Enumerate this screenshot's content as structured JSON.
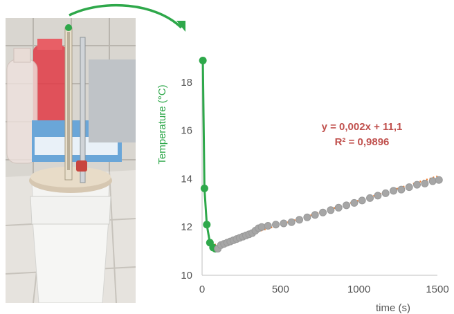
{
  "chart_data": {
    "type": "scatter",
    "title": "",
    "xlabel": "time (s)",
    "ylabel": "Temperature (°C)",
    "xlim": [
      0,
      1500
    ],
    "ylim": [
      10,
      19
    ],
    "x_ticks": [
      "0",
      "500",
      "1000",
      "1500"
    ],
    "y_ticks": [
      "10",
      "12",
      "14",
      "16",
      "18"
    ],
    "grid": false,
    "annotations": [
      "y = 0,002x + 11,1",
      "R² = 0,9896"
    ],
    "colors": {
      "cooling_series": "#2ea84a",
      "warming_series": "#a6a6a6",
      "trendline": "#ed7d31",
      "equation_text": "#c0504d",
      "arrow": "#2ea84a"
    },
    "series": [
      {
        "color": "#2ea84a",
        "style": "line+markers",
        "points": [
          [
            5,
            18.9
          ],
          [
            15,
            13.6
          ],
          [
            30,
            12.1
          ],
          [
            50,
            11.35
          ],
          [
            70,
            11.15
          ],
          [
            85,
            11.1
          ]
        ]
      },
      {
        "color": "#a6a6a6",
        "style": "markers",
        "points": [
          [
            100,
            11.1
          ],
          [
            120,
            11.25
          ],
          [
            140,
            11.3
          ],
          [
            160,
            11.35
          ],
          [
            180,
            11.4
          ],
          [
            200,
            11.45
          ],
          [
            220,
            11.5
          ],
          [
            240,
            11.55
          ],
          [
            260,
            11.6
          ],
          [
            280,
            11.65
          ],
          [
            300,
            11.7
          ],
          [
            320,
            11.75
          ],
          [
            340,
            11.85
          ],
          [
            360,
            11.95
          ],
          [
            380,
            12.0
          ],
          [
            420,
            12.05
          ],
          [
            470,
            12.1
          ],
          [
            520,
            12.15
          ],
          [
            570,
            12.2
          ],
          [
            620,
            12.3
          ],
          [
            670,
            12.4
          ],
          [
            720,
            12.5
          ],
          [
            770,
            12.6
          ],
          [
            820,
            12.7
          ],
          [
            870,
            12.8
          ],
          [
            920,
            12.9
          ],
          [
            970,
            13.0
          ],
          [
            1020,
            13.1
          ],
          [
            1070,
            13.2
          ],
          [
            1120,
            13.3
          ],
          [
            1170,
            13.4
          ],
          [
            1220,
            13.5
          ],
          [
            1270,
            13.55
          ],
          [
            1320,
            13.65
          ],
          [
            1370,
            13.75
          ],
          [
            1420,
            13.8
          ],
          [
            1470,
            13.9
          ],
          [
            1510,
            13.95
          ]
        ]
      }
    ],
    "trendline": {
      "slope": 0.002,
      "intercept": 11.1,
      "x_range": [
        80,
        1510
      ],
      "style": "dotted"
    }
  }
}
